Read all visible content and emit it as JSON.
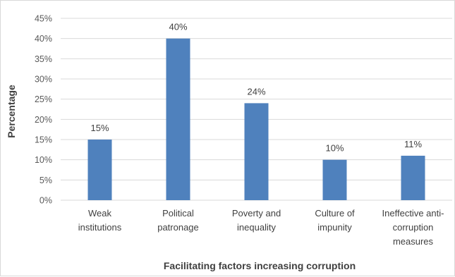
{
  "chart_data": {
    "type": "bar",
    "categories": [
      [
        "Weak",
        "institutions"
      ],
      [
        "Political",
        "patronage"
      ],
      [
        "Poverty and",
        "inequality"
      ],
      [
        "Culture of",
        "impunity"
      ],
      [
        "Ineffective anti-",
        "corruption",
        "measures"
      ]
    ],
    "values": [
      15,
      40,
      24,
      10,
      11
    ],
    "data_labels": [
      "15%",
      "40%",
      "24%",
      "10%",
      "11%"
    ],
    "xlabel": "Facilitating factors increasing corruption",
    "ylabel": "Percentage",
    "ylim": [
      0,
      45
    ],
    "yticks": [
      "0%",
      "5%",
      "10%",
      "15%",
      "20%",
      "25%",
      "30%",
      "35%",
      "40%",
      "45%"
    ],
    "grid": true,
    "bar_color": "#4f81bd",
    "grid_color": "#d9d9d9"
  }
}
